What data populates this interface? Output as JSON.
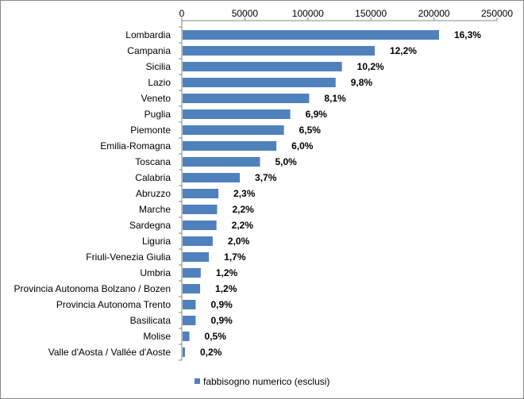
{
  "chart_data": {
    "type": "bar",
    "orientation": "horizontal",
    "title": "",
    "xlabel": "",
    "ylabel": "",
    "xlim": [
      0,
      250000
    ],
    "xticks": [
      0,
      50000,
      100000,
      150000,
      200000,
      250000
    ],
    "xaxis_position": "top",
    "grid": false,
    "legend_position": "bottom",
    "series": [
      {
        "name": "fabbisogno numerico (esclusi)",
        "color": "#4F81BD",
        "categories": [
          "Lombardia",
          "Campania",
          "Sicilia",
          "Lazio",
          "Veneto",
          "Puglia",
          "Piemonte",
          "Emilia-Romagna",
          "Toscana",
          "Calabria",
          "Abruzzo",
          "Marche",
          "Sardegna",
          "Liguria",
          "Friuli-Venezia Giulia",
          "Umbria",
          "Provincia Autonoma Bolzano / Bozen",
          "Provincia Autonoma Trento",
          "Basilicata",
          "Molise",
          "Valle d'Aosta / Vallée d'Aoste"
        ],
        "values": [
          204000,
          153000,
          127000,
          122000,
          101000,
          86000,
          81000,
          75000,
          62000,
          46000,
          29000,
          28000,
          27500,
          24500,
          21500,
          15000,
          14500,
          11000,
          11000,
          6000,
          2500
        ],
        "data_labels": [
          "16,3%",
          "12,2%",
          "10,2%",
          "9,8%",
          "8,1%",
          "6,9%",
          "6,5%",
          "6,0%",
          "5,0%",
          "3,7%",
          "2,3%",
          "2,2%",
          "2,2%",
          "2,0%",
          "1,7%",
          "1,2%",
          "1,2%",
          "0,9%",
          "0,9%",
          "0,5%",
          "0,2%"
        ]
      }
    ]
  }
}
